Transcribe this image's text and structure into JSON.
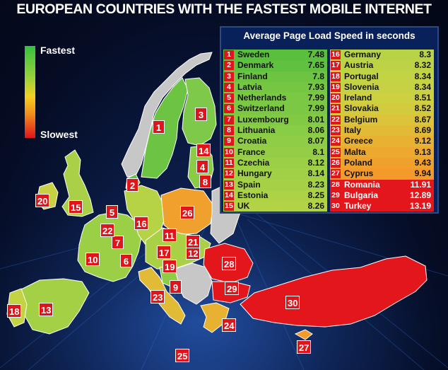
{
  "title": "EUROPEAN COUNTRIES WITH THE FASTEST MOBILE INTERNET",
  "legend": {
    "fastest": "Fastest",
    "slowest": "Slowest"
  },
  "table": {
    "title": "Average Page Load Speed in seconds",
    "rows": [
      {
        "rank": "1",
        "country": "Sweden",
        "value": "7.48",
        "color": "#5bbf3e"
      },
      {
        "rank": "2",
        "country": "Denmark",
        "value": "7.65",
        "color": "#60c040"
      },
      {
        "rank": "3",
        "country": "Finland",
        "value": "7.8",
        "color": "#6cc442"
      },
      {
        "rank": "4",
        "country": "Latvia",
        "value": "7.93",
        "color": "#74c643"
      },
      {
        "rank": "5",
        "country": "Netherlands",
        "value": "7.99",
        "color": "#7bc844"
      },
      {
        "rank": "6",
        "country": "Switzerland",
        "value": "7.99",
        "color": "#7bc844"
      },
      {
        "rank": "7",
        "country": "Luxembourg",
        "value": "8.01",
        "color": "#82ca44"
      },
      {
        "rank": "8",
        "country": "Lithuania",
        "value": "8.06",
        "color": "#89cc45"
      },
      {
        "rank": "9",
        "country": "Croatia",
        "value": "8.07",
        "color": "#8fcd46"
      },
      {
        "rank": "10",
        "country": "France",
        "value": "8.1",
        "color": "#95ce46"
      },
      {
        "rank": "11",
        "country": "Czechia",
        "value": "8.12",
        "color": "#9acf46"
      },
      {
        "rank": "12",
        "country": "Hungary",
        "value": "8.14",
        "color": "#a0d046"
      },
      {
        "rank": "13",
        "country": "Spain",
        "value": "8.23",
        "color": "#a6d146"
      },
      {
        "rank": "14",
        "country": "Estonia",
        "value": "8.25",
        "color": "#acd246"
      },
      {
        "rank": "15",
        "country": "UK",
        "value": "8.26",
        "color": "#b2d346"
      },
      {
        "rank": "16",
        "country": "Germany",
        "value": "8.3",
        "color": "#b8d346"
      },
      {
        "rank": "17",
        "country": "Austria",
        "value": "8.32",
        "color": "#bdd345"
      },
      {
        "rank": "18",
        "country": "Portugal",
        "value": "8.34",
        "color": "#c2d344"
      },
      {
        "rank": "19",
        "country": "Slovenia",
        "value": "8.34",
        "color": "#c6d243"
      },
      {
        "rank": "20",
        "country": "Ireland",
        "value": "8.51",
        "color": "#cdd041"
      },
      {
        "rank": "21",
        "country": "Slovakia",
        "value": "8.52",
        "color": "#d3cb3e"
      },
      {
        "rank": "22",
        "country": "Belgium",
        "value": "8.67",
        "color": "#dbc43a"
      },
      {
        "rank": "23",
        "country": "Italy",
        "value": "8.69",
        "color": "#e1bb36"
      },
      {
        "rank": "24",
        "country": "Greece",
        "value": "9.12",
        "color": "#e8b132"
      },
      {
        "rank": "25",
        "country": "Malta",
        "value": "9.13",
        "color": "#eca82f"
      },
      {
        "rank": "26",
        "country": "Poland",
        "value": "9.43",
        "color": "#f0a02c"
      },
      {
        "rank": "27",
        "country": "Cyprus",
        "value": "9.94",
        "color": "#f39a2a"
      },
      {
        "rank": "28",
        "country": "Romania",
        "value": "11.91",
        "color": "#e3161b"
      },
      {
        "rank": "29",
        "country": "Bulgaria",
        "value": "12.89",
        "color": "#e3161b"
      },
      {
        "rank": "30",
        "country": "Turkey",
        "value": "13.19",
        "color": "#e3161b"
      }
    ]
  },
  "map_markers": [
    "1",
    "2",
    "3",
    "4",
    "5",
    "6",
    "7",
    "8",
    "9",
    "10",
    "11",
    "12",
    "13",
    "14",
    "15",
    "16",
    "17",
    "18",
    "19",
    "20",
    "21",
    "22",
    "23",
    "24",
    "25",
    "26",
    "27",
    "28",
    "29",
    "30"
  ]
}
